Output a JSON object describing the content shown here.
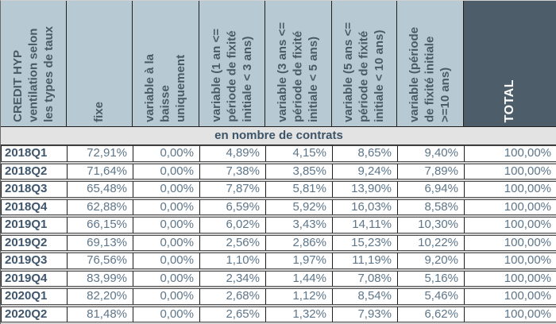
{
  "chart_data": {
    "type": "table",
    "title": "CREDIT HYP ventilation selon les types de taux",
    "section_label": "en nombre de contrats",
    "corner_header_lines": [
      "CREDIT HYP",
      "ventilation selon",
      "les types de taux"
    ],
    "column_headers": [
      {
        "id": "fixe",
        "name": "fixe",
        "lines": [
          "fixe"
        ]
      },
      {
        "id": "variable-baisse",
        "name": "variable à la baisse uniquement",
        "lines": [
          "variable à la",
          "baisse",
          "uniquement"
        ]
      },
      {
        "id": "variable-1-3",
        "name": "variable (1 an <= période de fixité initiale < 3 ans)",
        "lines": [
          "variable (1 an <=",
          "période de fixité",
          "initiale < 3 ans)"
        ]
      },
      {
        "id": "variable-3-5",
        "name": "variable (3 ans <= période de fixité initiale < 5 ans)",
        "lines": [
          "variable (3 ans <=",
          "période de fixité",
          "initiale < 5 ans)"
        ]
      },
      {
        "id": "variable-5-10",
        "name": "variable (5 ans <= période de fixité initiale < 10 ans)",
        "lines": [
          "variable (5 ans <=",
          "période de fixité",
          "initiale < 10 ans)"
        ]
      },
      {
        "id": "variable-10plus",
        "name": "variable (période de fixité initiale >=10 ans)",
        "lines": [
          "variable (période",
          "de fixité initiale",
          ">=10 ans)"
        ]
      },
      {
        "id": "total",
        "name": "TOTAL",
        "lines": [
          "TOTAL"
        ],
        "dark": true
      }
    ],
    "rows": [
      {
        "label": "2018Q1",
        "values": [
          "72,91%",
          "0,00%",
          "4,89%",
          "4,15%",
          "8,65%",
          "9,40%",
          "100,00%"
        ]
      },
      {
        "label": "2018Q2",
        "values": [
          "71,64%",
          "0,00%",
          "7,38%",
          "3,85%",
          "9,24%",
          "7,89%",
          "100,00%"
        ]
      },
      {
        "label": "2018Q3",
        "values": [
          "65,48%",
          "0,00%",
          "7,87%",
          "5,81%",
          "13,90%",
          "6,94%",
          "100,00%"
        ]
      },
      {
        "label": "2018Q4",
        "values": [
          "62,88%",
          "0,00%",
          "6,59%",
          "5,92%",
          "16,03%",
          "8,58%",
          "100,00%"
        ]
      },
      {
        "label": "2019Q1",
        "values": [
          "66,15%",
          "0,00%",
          "6,02%",
          "3,43%",
          "14,11%",
          "10,30%",
          "100,00%"
        ]
      },
      {
        "label": "2019Q2",
        "values": [
          "69,13%",
          "0,00%",
          "2,56%",
          "2,86%",
          "15,23%",
          "10,22%",
          "100,00%"
        ]
      },
      {
        "label": "2019Q3",
        "values": [
          "76,56%",
          "0,00%",
          "1,10%",
          "1,97%",
          "11,19%",
          "9,20%",
          "100,00%"
        ]
      },
      {
        "label": "2019Q4",
        "values": [
          "83,99%",
          "0,00%",
          "2,34%",
          "1,44%",
          "7,08%",
          "5,16%",
          "100,00%"
        ]
      },
      {
        "label": "2020Q1",
        "values": [
          "82,20%",
          "0,00%",
          "2,68%",
          "1,12%",
          "8,54%",
          "5,46%",
          "100,00%"
        ]
      },
      {
        "label": "2020Q2",
        "values": [
          "81,48%",
          "0,00%",
          "2,65%",
          "1,32%",
          "7,93%",
          "6,62%",
          "100,00%"
        ]
      }
    ]
  },
  "colors": {
    "header_background": "#b7cad4",
    "total_header_background": "#4d5e6a",
    "total_header_text": "#ffffff",
    "section_band_background": "#e3e3e3",
    "header_text": "#4b5a66",
    "row_label_text": "#3f566d",
    "value_text": "#5e7689"
  }
}
